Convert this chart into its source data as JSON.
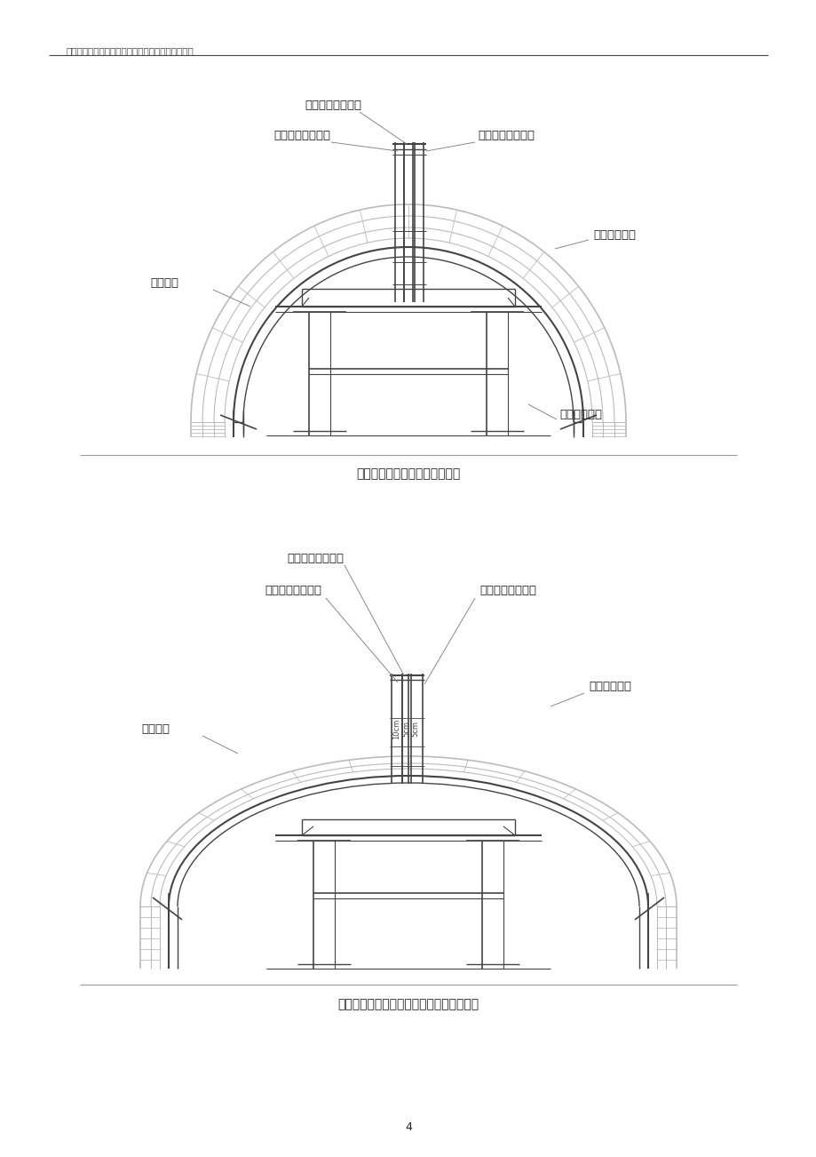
{
  "header_text": "中铁三局集团有限公司牡绥铁路工程三标项目经理部",
  "page_number": "4",
  "diagram1_caption": "浇筑混凝土系统钢管布置示意图",
  "diagram2_caption": "混凝土灌注管、排气孔、观察孔布置示意图",
  "label_di2_gen": "第二根（排气孔）",
  "label_yi1_gen": "第一根（灌注孔）",
  "label_san3_gen": "第三根（观察孔）",
  "label_chuqi_gangjia": "初期支护钢架",
  "label_huidao_weiyuan": "隧道围岩",
  "label_chuqi_taijia": "初期支护台架",
  "line_color": "#999999",
  "dark_line_color": "#444444",
  "light_line_color": "#bbbbbb",
  "text_color": "#222222",
  "bg_color": "#ffffff"
}
